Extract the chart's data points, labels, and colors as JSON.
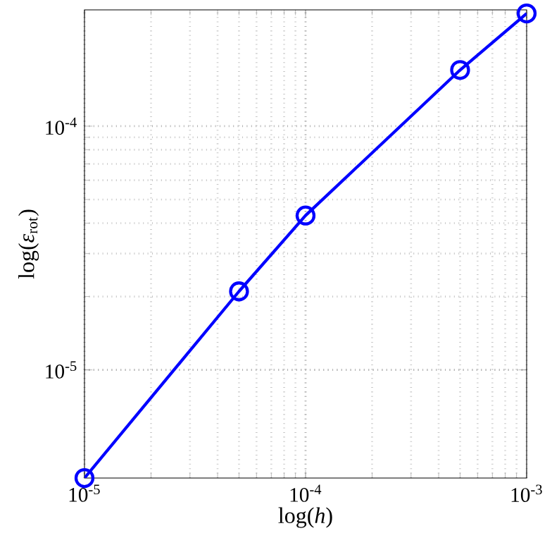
{
  "chart_data": {
    "type": "line",
    "xlabel": "log(*h*)",
    "ylabel": "log(*ε*$_{rot}$)",
    "x": [
      1e-05,
      5e-05,
      0.0001,
      0.0005,
      0.001
    ],
    "series": [
      {
        "color": "#0000ff",
        "values": [
          3.6e-06,
          2.1e-05,
          4.3e-05,
          0.00017,
          0.00029
        ]
      }
    ],
    "xlim": [
      1e-05,
      0.001
    ],
    "ylim": [
      3.6e-06,
      0.0003
    ],
    "xticks": [
      {
        "value": 1e-05,
        "label": "10$^{-5}$"
      },
      {
        "value": 0.0001,
        "label": "10$^{-4}$"
      },
      {
        "value": 0.001,
        "label": "10$^{-3}$"
      }
    ],
    "yticks": [
      {
        "value": 1e-05,
        "label": "10$^{-5}$"
      },
      {
        "value": 0.0001,
        "label": "10$^{-4}$"
      }
    ],
    "log": "xy",
    "grid": true,
    "marker": "circle",
    "line_style": "solid"
  }
}
